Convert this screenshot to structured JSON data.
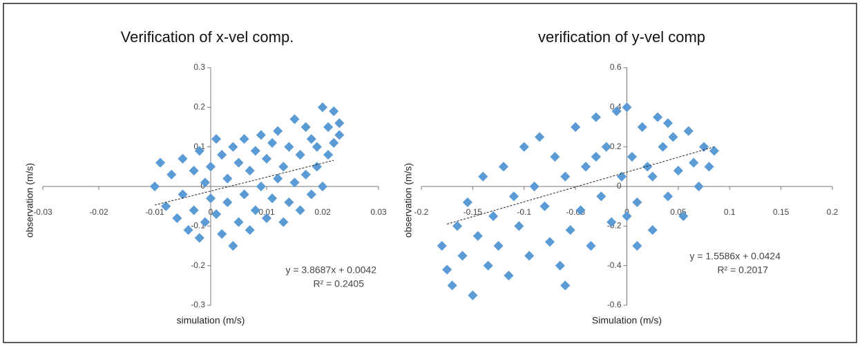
{
  "chart_data": [
    {
      "type": "scatter",
      "title": "Verification of x-vel comp.",
      "x_label": "simulation (m/s)",
      "y_label": "observation (m/s)",
      "equation": "y = 3.8687x + 0.0042",
      "r_squared": "R² = 0.2405",
      "color": "#5b9bd5",
      "xlim": [
        -0.03,
        0.03
      ],
      "xticks": [
        -0.03,
        -0.02,
        -0.01,
        0,
        0.01,
        0.02,
        0.03
      ],
      "ylim": [
        -0.3,
        0.3
      ],
      "yticks": [
        -0.3,
        -0.2,
        -0.1,
        0,
        0.1,
        0.2,
        0.3
      ],
      "trendline": {
        "x": [
          -0.01,
          0.022
        ],
        "y": [
          -0.047,
          0.066
        ]
      },
      "x": [
        -0.01,
        -0.009,
        -0.008,
        -0.007,
        -0.006,
        -0.005,
        -0.005,
        -0.004,
        -0.003,
        -0.003,
        -0.002,
        -0.002,
        -0.001,
        -0.001,
        0.0,
        0.0,
        0.001,
        0.001,
        0.002,
        0.002,
        0.003,
        0.003,
        0.004,
        0.004,
        0.005,
        0.005,
        0.006,
        0.006,
        0.007,
        0.007,
        0.008,
        0.008,
        0.009,
        0.009,
        0.01,
        0.01,
        0.011,
        0.011,
        0.012,
        0.012,
        0.013,
        0.013,
        0.014,
        0.014,
        0.015,
        0.015,
        0.016,
        0.016,
        0.017,
        0.017,
        0.018,
        0.018,
        0.019,
        0.019,
        0.02,
        0.02,
        0.021,
        0.021,
        0.022,
        0.022,
        0.023,
        0.023
      ],
      "values": [
        0.0,
        0.06,
        -0.05,
        0.03,
        -0.08,
        0.07,
        -0.02,
        -0.11,
        0.04,
        -0.06,
        0.09,
        -0.13,
        0.01,
        -0.09,
        0.05,
        -0.03,
        0.12,
        -0.07,
        0.08,
        -0.12,
        0.02,
        -0.04,
        0.1,
        -0.15,
        0.06,
        -0.09,
        0.12,
        -0.02,
        0.04,
        -0.11,
        0.09,
        -0.06,
        0.13,
        0.0,
        0.07,
        -0.08,
        0.11,
        -0.03,
        0.14,
        0.02,
        0.05,
        -0.09,
        0.1,
        -0.04,
        0.17,
        0.01,
        0.08,
        -0.06,
        0.15,
        0.03,
        0.12,
        -0.02,
        0.1,
        0.05,
        0.2,
        0.0,
        0.15,
        0.08,
        0.19,
        0.11,
        0.13,
        0.16
      ]
    },
    {
      "type": "scatter",
      "title": "verification of y-vel comp",
      "x_label": "Simulation (m/s)",
      "y_label": "observation (m/s)",
      "equation": "y = 1.5586x + 0.0424",
      "r_squared": "R² = 0.2017",
      "color": "#5b9bd5",
      "xlim": [
        -0.2,
        0.2
      ],
      "xticks": [
        -0.2,
        -0.15,
        -0.1,
        -0.05,
        0,
        0.05,
        0.1,
        0.15,
        0.2
      ],
      "ylim": [
        -0.6,
        0.6
      ],
      "yticks": [
        -0.6,
        -0.4,
        -0.2,
        0,
        0.2,
        0.4,
        0.6
      ],
      "trendline": {
        "x": [
          -0.175,
          0.085
        ],
        "y": [
          -0.19,
          0.2
        ]
      },
      "x": [
        -0.18,
        -0.175,
        -0.17,
        -0.165,
        -0.16,
        -0.155,
        -0.15,
        -0.145,
        -0.14,
        -0.135,
        -0.13,
        -0.125,
        -0.12,
        -0.115,
        -0.11,
        -0.105,
        -0.1,
        -0.095,
        -0.09,
        -0.085,
        -0.08,
        -0.075,
        -0.07,
        -0.065,
        -0.06,
        -0.055,
        -0.05,
        -0.045,
        -0.04,
        -0.035,
        -0.03,
        -0.025,
        -0.02,
        -0.015,
        -0.01,
        -0.005,
        0.0,
        0.0,
        0.005,
        0.01,
        0.015,
        0.02,
        0.025,
        0.03,
        0.035,
        0.04,
        0.045,
        0.05,
        0.055,
        0.06,
        0.065,
        0.07,
        0.075,
        0.08,
        0.085,
        0.01,
        -0.06,
        0.025,
        -0.03,
        0.04
      ],
      "values": [
        -0.3,
        -0.42,
        -0.5,
        -0.2,
        -0.35,
        -0.08,
        -0.55,
        -0.25,
        0.05,
        -0.4,
        -0.15,
        -0.3,
        0.1,
        -0.45,
        -0.05,
        -0.2,
        0.2,
        -0.35,
        0.0,
        0.25,
        -0.1,
        -0.28,
        0.15,
        -0.4,
        0.05,
        -0.22,
        0.3,
        -0.12,
        0.1,
        -0.3,
        0.35,
        -0.05,
        0.2,
        -0.18,
        0.38,
        0.05,
        0.4,
        -0.15,
        0.15,
        -0.08,
        0.3,
        0.1,
        -0.22,
        0.35,
        0.2,
        -0.05,
        0.25,
        0.08,
        -0.15,
        0.28,
        0.12,
        0.0,
        0.2,
        0.1,
        0.18,
        -0.3,
        -0.5,
        0.05,
        0.15,
        0.32
      ]
    }
  ]
}
